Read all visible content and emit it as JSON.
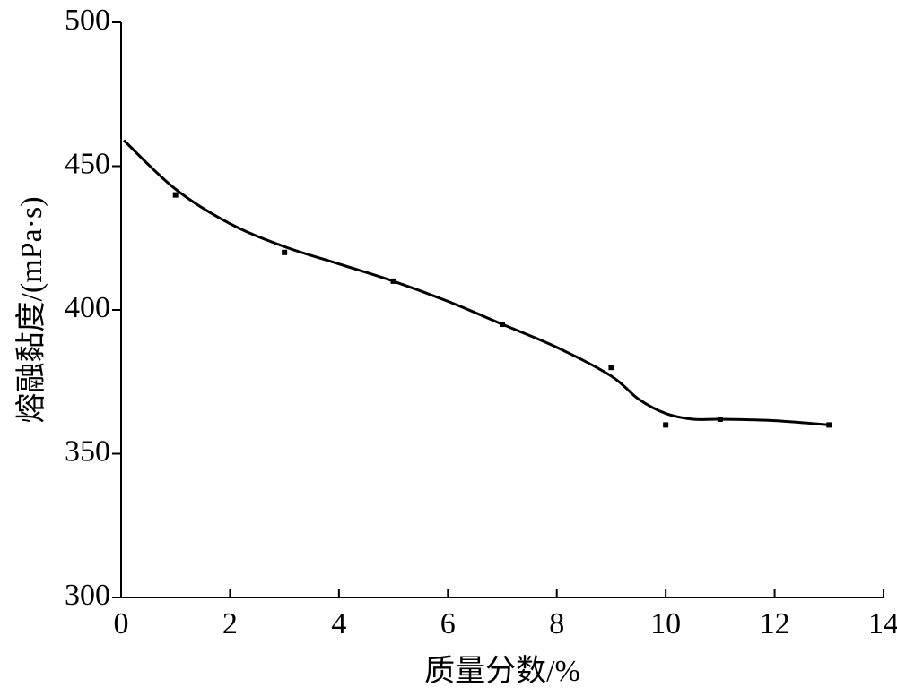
{
  "chart_data": {
    "type": "scatter",
    "x_label": "质量分数/%",
    "y_label": "熔融黏度/(mPa·s)",
    "x": [
      1,
      3,
      5,
      7,
      9,
      10,
      11,
      13
    ],
    "values": [
      440,
      420,
      410,
      395,
      380,
      360,
      362,
      360
    ],
    "color": "#000000",
    "curve": {
      "x": [
        0.05,
        1,
        2,
        3,
        4,
        5,
        6,
        7,
        8,
        9,
        9.5,
        10,
        10.5,
        11,
        12,
        13
      ],
      "values": [
        459,
        442,
        430,
        422,
        416,
        410,
        403,
        395,
        387,
        377,
        369,
        364,
        362,
        362,
        361.5,
        360
      ]
    },
    "xlim": [
      0,
      14
    ],
    "xticks": [
      0,
      2,
      4,
      6,
      8,
      10,
      12,
      14
    ],
    "ylim": [
      300,
      500
    ],
    "yticks": [
      300,
      350,
      400,
      450,
      500
    ]
  }
}
